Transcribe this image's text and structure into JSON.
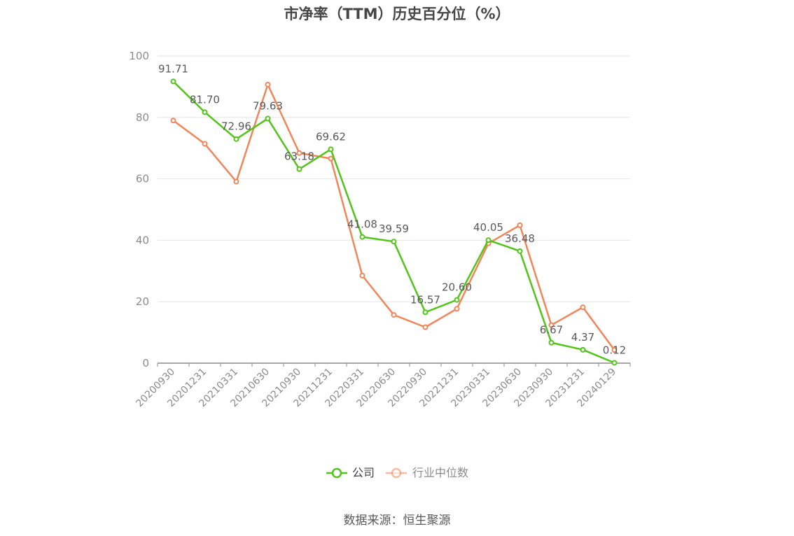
{
  "chart_data": {
    "type": "line",
    "title": "市净率（TTM）历史百分位（%）",
    "categories": [
      "20200930",
      "20201231",
      "20210331",
      "20210630",
      "20210930",
      "20211231",
      "20220331",
      "20220630",
      "20220930",
      "20221231",
      "20230331",
      "20230630",
      "20230930",
      "20231231",
      "20240129"
    ],
    "series": [
      {
        "name": "公司",
        "color": "#52c41a",
        "values": [
          91.71,
          81.7,
          72.96,
          79.63,
          63.18,
          69.62,
          41.08,
          39.59,
          16.57,
          20.6,
          40.05,
          36.48,
          6.67,
          4.37,
          0.12
        ],
        "labels": [
          "91.71",
          "81.70",
          "72.96",
          "79.63",
          "63.18",
          "69.62",
          "41.08",
          "39.59",
          "16.57",
          "20.60",
          "40.05",
          "36.48",
          "6.67",
          "4.37",
          "0.12"
        ]
      },
      {
        "name": "行业中位数",
        "color": "#f0865a",
        "values": [
          79.0,
          71.4,
          59.1,
          90.7,
          68.4,
          66.6,
          28.5,
          15.7,
          11.7,
          17.7,
          39.0,
          44.9,
          12.4,
          18.2,
          4.3
        ]
      }
    ],
    "yticks": [
      "0",
      "20",
      "40",
      "60",
      "80",
      "100"
    ],
    "ylim": [
      0,
      100
    ],
    "grid": true,
    "legend_position": "bottom"
  },
  "footer": {
    "source": "数据来源：恒生聚源"
  }
}
